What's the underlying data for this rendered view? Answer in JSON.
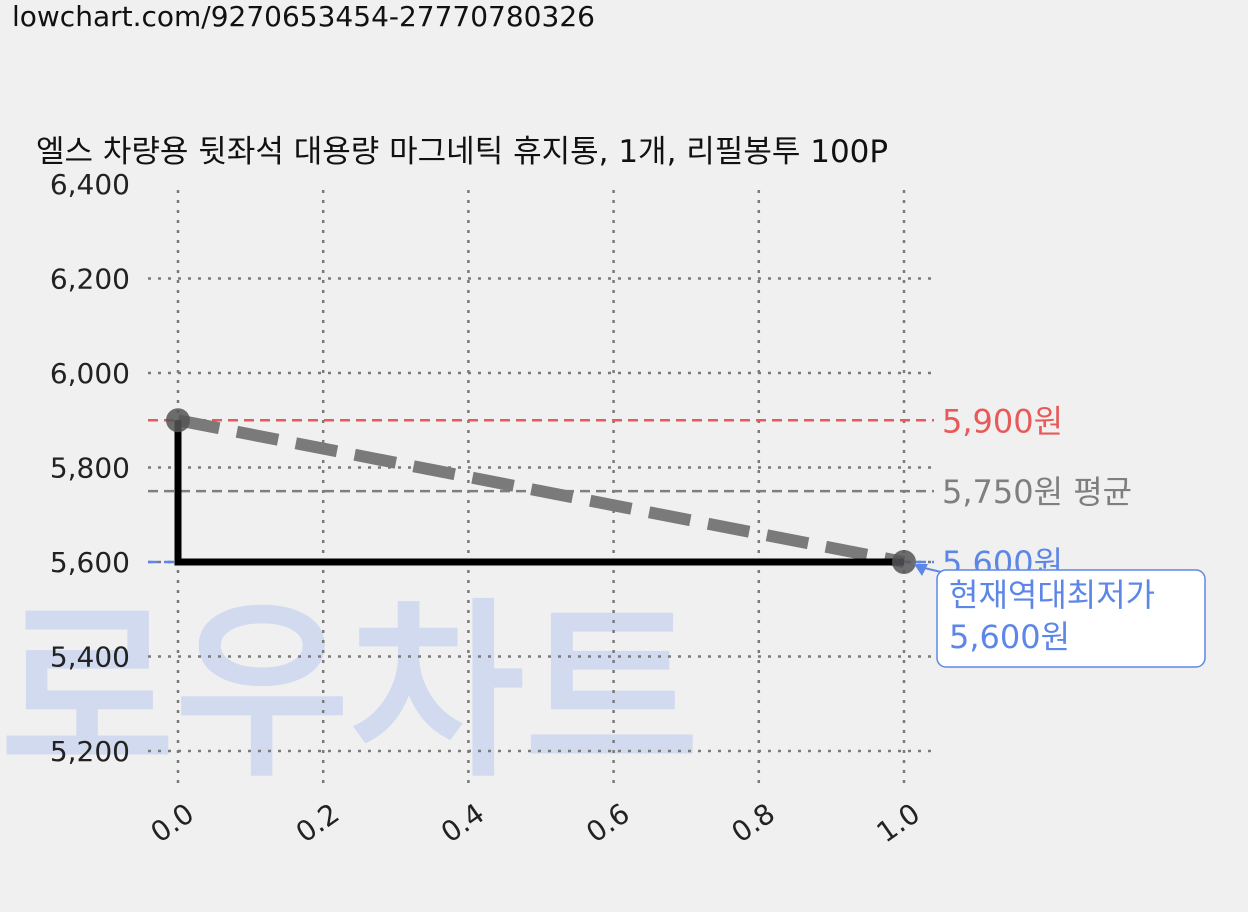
{
  "url_text": "lowchart.com/9270653454-27770780326",
  "watermark": "로우차트",
  "colors": {
    "max": "#e85a5a",
    "avg": "#7f7f7f",
    "min": "#5d87e6",
    "price_line": "#000000",
    "trend": "#7a7a7a",
    "background": "#f0f0f0"
  },
  "chart_data": {
    "type": "line",
    "title": "엘스 차량용 뒷좌석 대용량 마그네틱 휴지통, 1개, 리필봉투 100P",
    "xlabel": "",
    "ylabel": "",
    "xlim": [
      0.0,
      1.0
    ],
    "ylim": [
      5100,
      6400
    ],
    "x_ticks": [
      "0.0",
      "0.2",
      "0.4",
      "0.6",
      "0.8",
      "1.0"
    ],
    "x_tick_values": [
      0.0,
      0.2,
      0.4,
      0.6,
      0.8,
      1.0
    ],
    "y_ticks": [
      "5,200",
      "5,400",
      "5,600",
      "5,800",
      "6,000",
      "6,200",
      "6,400"
    ],
    "y_tick_values": [
      5200,
      5400,
      5600,
      5800,
      6000,
      6200,
      6400
    ],
    "grid": true,
    "series": [
      {
        "role": "price",
        "points": [
          [
            0.0,
            5900
          ],
          [
            0.0,
            5600
          ],
          [
            1.0,
            5600
          ]
        ]
      },
      {
        "role": "trend",
        "points": [
          [
            0.0,
            5900
          ],
          [
            1.0,
            5600
          ]
        ]
      }
    ],
    "reference_lines": [
      {
        "role": "max",
        "value": 5900,
        "label": "5,900원"
      },
      {
        "role": "avg",
        "value": 5750,
        "label": "5,750원 평균"
      },
      {
        "role": "min",
        "value": 5600,
        "label": "5,600원"
      }
    ],
    "annotation": {
      "x": 1.0,
      "y": 5600,
      "lines": [
        "현재역대최저가",
        "5,600원"
      ]
    }
  }
}
